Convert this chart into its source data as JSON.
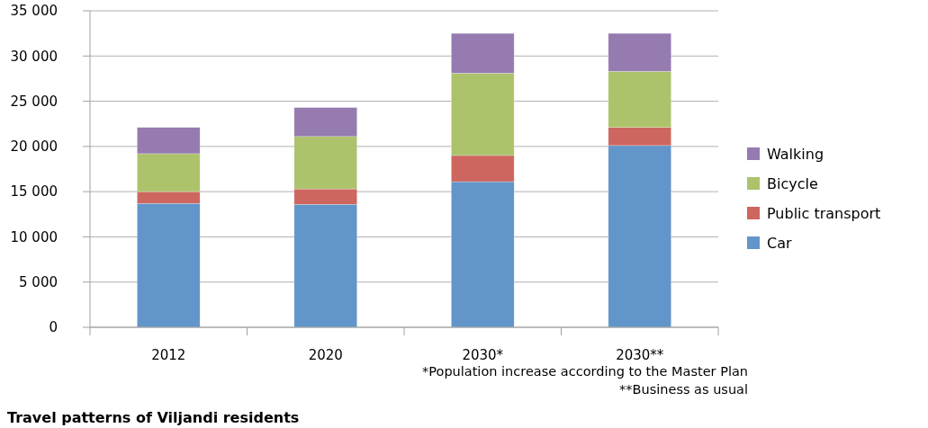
{
  "chart_data": {
    "type": "bar",
    "stacked": true,
    "title": "Travel patterns of Viljandi residents",
    "categories": [
      "2012",
      "2020",
      "2030*",
      "2030**"
    ],
    "series": [
      {
        "name": "Car",
        "color": "#6295c9",
        "values": [
          13700,
          13600,
          16100,
          20100
        ]
      },
      {
        "name": "Public transport",
        "color": "#cd665f",
        "values": [
          1300,
          1700,
          2900,
          2000
        ]
      },
      {
        "name": "Bicycle",
        "color": "#acc36b",
        "values": [
          4200,
          5800,
          9100,
          6200
        ]
      },
      {
        "name": "Walking",
        "color": "#957bb0",
        "values": [
          2900,
          3200,
          4400,
          4200
        ]
      }
    ],
    "ylim": [
      0,
      35000
    ],
    "yticks": [
      {
        "value": 0,
        "label": "0"
      },
      {
        "value": 5000,
        "label": "5 000"
      },
      {
        "value": 10000,
        "label": "10 000"
      },
      {
        "value": 15000,
        "label": "15 000"
      },
      {
        "value": 20000,
        "label": "20 000"
      },
      {
        "value": 25000,
        "label": "25 000"
      },
      {
        "value": 30000,
        "label": "30 000"
      },
      {
        "value": 35000,
        "label": "35 000"
      }
    ],
    "grid": "y",
    "legend": "right",
    "annotations": [
      "*Population increase according to the Master Plan",
      "**Business as usual"
    ]
  }
}
